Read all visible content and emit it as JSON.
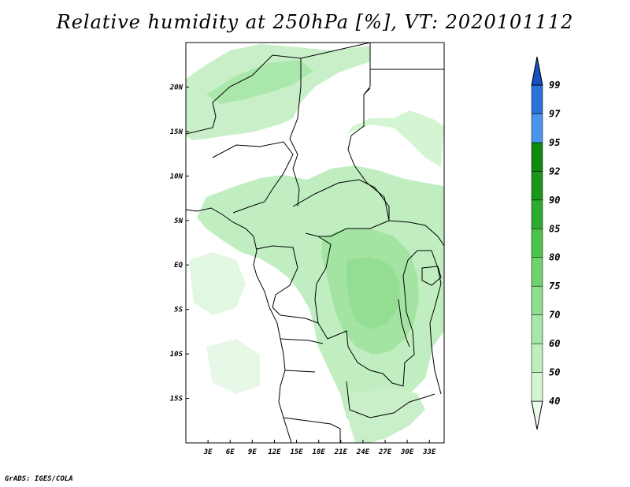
{
  "title": "Relative humidity at 250hPa [%], VT: 2020101112",
  "credit": "GrADS: IGES/COLA",
  "map": {
    "lon_range": [
      0,
      35
    ],
    "lat_range": [
      -20,
      25
    ],
    "x_ticks": [
      "3E",
      "6E",
      "9E",
      "12E",
      "15E",
      "18E",
      "21E",
      "24E",
      "27E",
      "30E",
      "33E"
    ],
    "x_tick_values": [
      3,
      6,
      9,
      12,
      15,
      18,
      21,
      24,
      27,
      30,
      33
    ],
    "y_ticks": [
      "20N",
      "15N",
      "10N",
      "5N",
      "EQ",
      "5S",
      "10S",
      "15S"
    ],
    "y_tick_values": [
      20,
      15,
      10,
      5,
      0,
      -5,
      -10,
      -15
    ]
  },
  "colorbar": {
    "levels": [
      "40",
      "50",
      "60",
      "70",
      "75",
      "80",
      "85",
      "90",
      "92",
      "95",
      "97",
      "99"
    ],
    "colors": [
      "#ebfaeb",
      "#d2f5d2",
      "#bdeebd",
      "#a6e6a6",
      "#8fdd8f",
      "#6fd26f",
      "#4cc34c",
      "#2eab2e",
      "#1a961a",
      "#0e8a0e",
      "#4a94ee",
      "#2a72d8",
      "#1450c0"
    ]
  }
}
